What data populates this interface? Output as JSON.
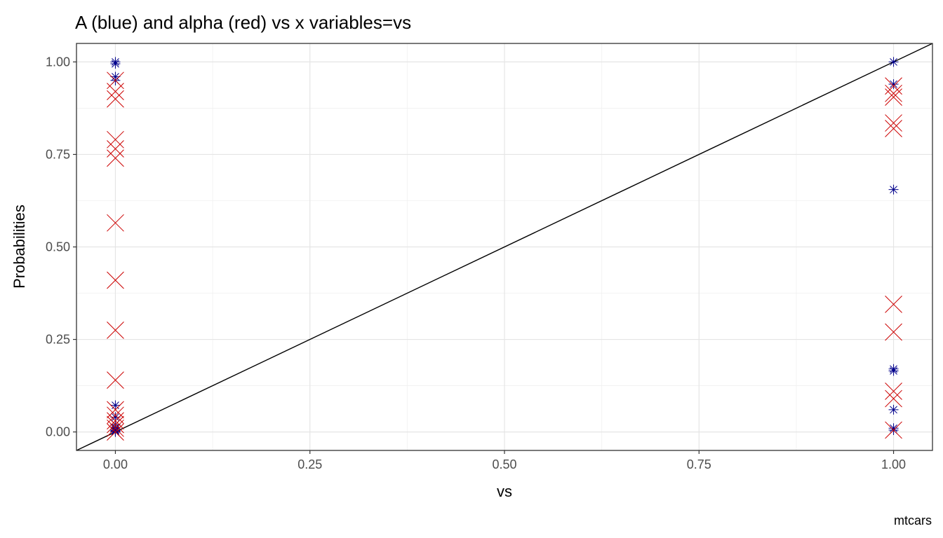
{
  "chart_data": {
    "type": "scatter",
    "title": "A (blue) and alpha (red) vs x variables=vs",
    "xlabel": "vs",
    "ylabel": "Probabilities",
    "caption": "mtcars",
    "xlim": [
      -0.05,
      1.05
    ],
    "ylim": [
      -0.05,
      1.05
    ],
    "x_ticks": [
      0,
      0.25,
      0.5,
      0.75,
      1
    ],
    "x_tick_labels": [
      "0.00",
      "0.25",
      "0.50",
      "0.75",
      "1.00"
    ],
    "y_ticks": [
      0,
      0.25,
      0.5,
      0.75,
      1
    ],
    "y_tick_labels": [
      "0.00",
      "0.25",
      "0.50",
      "0.75",
      "1.00"
    ],
    "grid": true,
    "reference_line": {
      "slope": 1,
      "intercept": 0,
      "color": "#000000"
    },
    "series": [
      {
        "color": "#00008B",
        "marker": "asterisk",
        "points": [
          [
            0,
            1.0
          ],
          [
            0,
            0.995
          ],
          [
            0,
            0.96
          ],
          [
            0,
            0.95
          ],
          [
            0,
            0.072
          ],
          [
            0,
            0.04
          ],
          [
            0,
            0.02
          ],
          [
            0,
            0.012
          ],
          [
            0,
            0.008
          ],
          [
            0,
            0.005
          ],
          [
            0,
            0.003
          ],
          [
            0,
            0.002
          ],
          [
            0,
            0.001
          ],
          [
            0,
            0.0
          ],
          [
            1,
            1.0
          ],
          [
            1,
            0.94
          ],
          [
            1,
            0.655
          ],
          [
            1,
            0.17
          ],
          [
            1,
            0.165
          ],
          [
            1,
            0.06
          ],
          [
            1,
            0.01
          ],
          [
            1,
            0.005
          ]
        ]
      },
      {
        "color": "#CC0000",
        "marker": "cross",
        "points": [
          [
            0,
            0.95
          ],
          [
            0,
            0.92
          ],
          [
            0,
            0.9
          ],
          [
            0,
            0.79
          ],
          [
            0,
            0.765
          ],
          [
            0,
            0.74
          ],
          [
            0,
            0.565
          ],
          [
            0,
            0.41
          ],
          [
            0,
            0.275
          ],
          [
            0,
            0.14
          ],
          [
            0,
            0.06
          ],
          [
            0,
            0.045
          ],
          [
            0,
            0.03
          ],
          [
            0,
            0.02
          ],
          [
            0,
            0.01
          ],
          [
            0,
            0.0
          ],
          [
            1,
            0.935
          ],
          [
            1,
            0.915
          ],
          [
            1,
            0.905
          ],
          [
            1,
            0.835
          ],
          [
            1,
            0.82
          ],
          [
            1,
            0.345
          ],
          [
            1,
            0.27
          ],
          [
            1,
            0.11
          ],
          [
            1,
            0.09
          ],
          [
            1,
            0.005
          ]
        ]
      }
    ]
  }
}
